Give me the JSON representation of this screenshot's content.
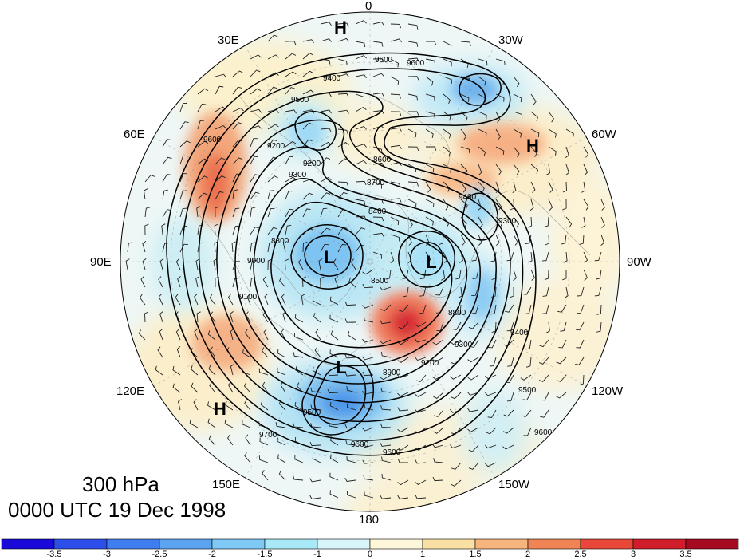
{
  "title": {
    "level": "300 hPa",
    "time": "0000 UTC 19 Dec 1998"
  },
  "longitude_labels": {
    "top": "0",
    "top_left": "30E",
    "top_right": "30W",
    "upper_left": "60E",
    "upper_right": "60W",
    "left": "90E",
    "right": "90W",
    "lower_left": "120E",
    "lower_right": "120W",
    "bottom_left": "150E",
    "bottom_right": "150W",
    "bottom": "180"
  },
  "pressure_systems": [
    "H",
    "H",
    "H",
    "L",
    "L",
    "L"
  ],
  "contour_labels": [
    "9600",
    "9600",
    "9400",
    "9500",
    "9600",
    "9200",
    "9300",
    "9200",
    "8700",
    "8600",
    "8800",
    "9000",
    "9100",
    "8500",
    "8400",
    "9400",
    "9300",
    "9200",
    "8900",
    "8800",
    "9300",
    "9400",
    "9500",
    "9600",
    "9700",
    "9500",
    "9600",
    "9600"
  ],
  "colorbar": {
    "ticks": [
      "-3.5",
      "-3",
      "-2.5",
      "-2",
      "-1.5",
      "-1",
      "0",
      "1",
      "1.5",
      "2",
      "2.5",
      "3",
      "3.5"
    ],
    "colors": [
      "#1a0ad9",
      "#2d4ee8",
      "#3f7ef0",
      "#5aa4f2",
      "#7ec9f5",
      "#a9e8f7",
      "#d6f5f8",
      "#fdf6d8",
      "#fbe0a6",
      "#f7b47c",
      "#f08454",
      "#e8473a",
      "#d11d2b",
      "#a50a1e"
    ]
  }
}
